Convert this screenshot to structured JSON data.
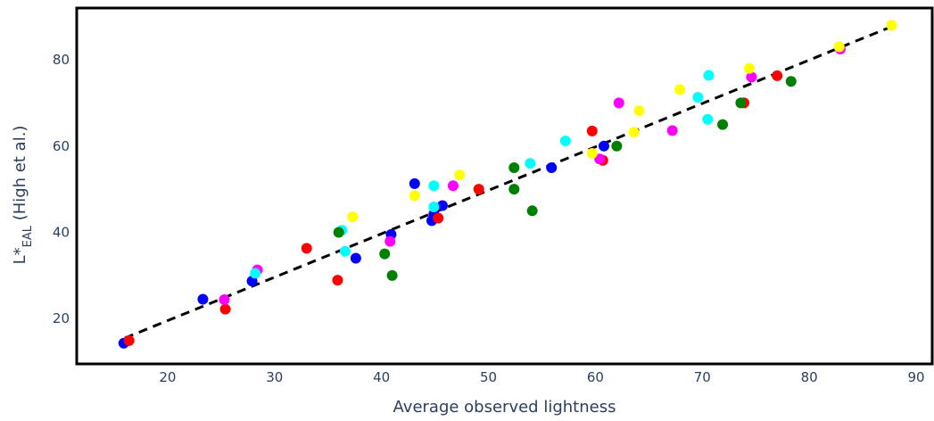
{
  "chart_data": {
    "type": "scatter",
    "title": "",
    "xlabel": "Average observed lightness",
    "ylabel": {
      "main": "L*",
      "subscript": "EAL",
      "suffix": " (High et al.)"
    },
    "xlim": [
      11.5,
      91.5
    ],
    "ylim": [
      9.5,
      92
    ],
    "x_ticks": [
      20,
      30,
      40,
      50,
      60,
      70,
      80,
      90
    ],
    "y_ticks": [
      20,
      40,
      60,
      80
    ],
    "grid": false,
    "legend": "none",
    "fit_line": {
      "style": "dashed",
      "color": "#000000",
      "x": [
        16,
        88
      ],
      "y": [
        15.5,
        88
      ]
    },
    "series": [
      {
        "color": "#0000ff",
        "points": [
          [
            15.9,
            14.3
          ],
          [
            23.3,
            24.5
          ],
          [
            27.9,
            28.7
          ],
          [
            37.6,
            34.0
          ],
          [
            40.9,
            39.5
          ],
          [
            43.1,
            51.3
          ],
          [
            44.7,
            42.7
          ],
          [
            44.9,
            44.2
          ],
          [
            45.7,
            46.2
          ],
          [
            55.9,
            55.0
          ],
          [
            60.8,
            60.0
          ]
        ]
      },
      {
        "color": "#ff0000",
        "points": [
          [
            16.4,
            14.9
          ],
          [
            25.4,
            22.2
          ],
          [
            33.0,
            36.3
          ],
          [
            35.9,
            28.9
          ],
          [
            45.3,
            43.3
          ],
          [
            49.1,
            50.0
          ],
          [
            59.7,
            63.5
          ],
          [
            60.7,
            56.7
          ],
          [
            73.9,
            70.0
          ],
          [
            77.0,
            76.3
          ]
        ]
      },
      {
        "color": "#ff00ff",
        "points": [
          [
            25.3,
            24.4
          ],
          [
            28.4,
            31.3
          ],
          [
            40.8,
            37.9
          ],
          [
            46.7,
            50.8
          ],
          [
            60.4,
            57.0
          ],
          [
            62.2,
            70.0
          ],
          [
            67.2,
            63.6
          ],
          [
            74.6,
            76.0
          ],
          [
            82.9,
            82.5
          ]
        ]
      },
      {
        "color": "#00ffff",
        "points": [
          [
            28.2,
            30.5
          ],
          [
            36.3,
            40.5
          ],
          [
            36.6,
            35.6
          ],
          [
            44.9,
            45.9
          ],
          [
            44.9,
            50.8
          ],
          [
            53.9,
            56.0
          ],
          [
            57.2,
            61.2
          ],
          [
            69.6,
            71.3
          ],
          [
            70.5,
            66.2
          ],
          [
            70.6,
            76.4
          ]
        ]
      },
      {
        "color": "#ffff00",
        "points": [
          [
            37.3,
            43.6
          ],
          [
            43.1,
            48.5
          ],
          [
            47.3,
            53.3
          ],
          [
            59.7,
            58.3
          ],
          [
            63.6,
            63.2
          ],
          [
            64.1,
            68.2
          ],
          [
            67.9,
            73.1
          ],
          [
            74.4,
            78.0
          ],
          [
            82.8,
            83.0
          ],
          [
            87.7,
            88.0
          ]
        ]
      },
      {
        "color": "#008000",
        "points": [
          [
            36.0,
            40.0
          ],
          [
            40.3,
            35.0
          ],
          [
            41.0,
            30.0
          ],
          [
            52.4,
            50.0
          ],
          [
            52.4,
            55.0
          ],
          [
            54.1,
            45.0
          ],
          [
            62.0,
            60.0
          ],
          [
            71.9,
            65.0
          ],
          [
            73.6,
            70.0
          ],
          [
            78.3,
            75.0
          ]
        ]
      }
    ]
  }
}
